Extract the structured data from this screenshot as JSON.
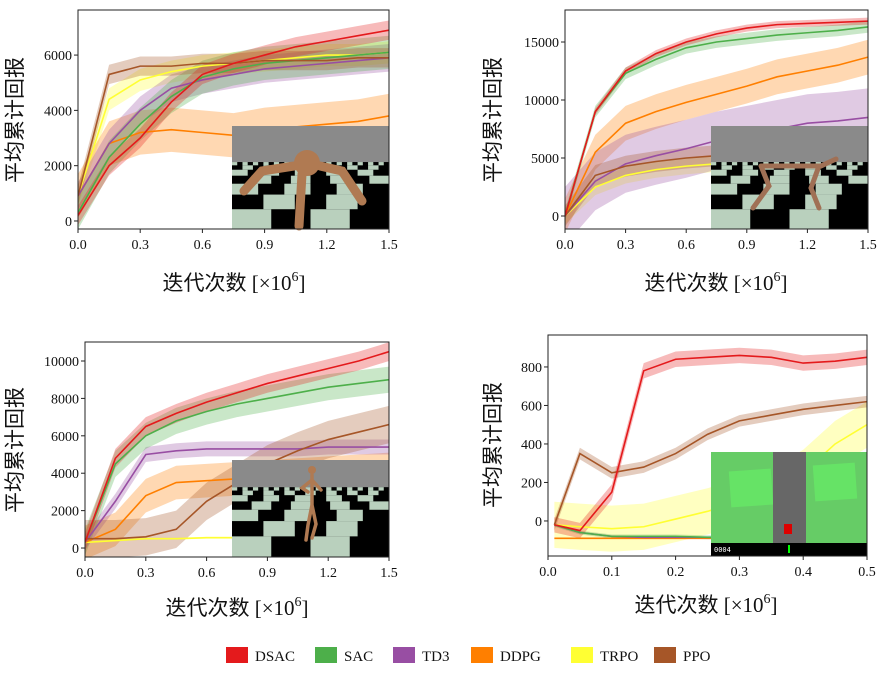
{
  "colors": {
    "DSAC": "#e41a1c",
    "SAC": "#4daf4a",
    "TD3": "#984ea3",
    "DDPG": "#ff7f00",
    "TRPO": "#ffff33",
    "PPO": "#a65628"
  },
  "legend": [
    "DSAC",
    "SAC",
    "TD3",
    "DDPG",
    "TRPO",
    "PPO"
  ],
  "chart_data": [
    {
      "type": "line",
      "xlabel": "迭代次数 [×10",
      "xlabel_sup": "6",
      "xlabel_end": "]",
      "ylabel": "平均累计回报",
      "xlim": [
        0,
        1.5
      ],
      "ylim": [
        -290,
        7630
      ],
      "xticks": [
        "0.0",
        "0.3",
        "0.6",
        "0.9",
        "1.2",
        "1.5"
      ],
      "xtick_values": [
        0,
        0.3,
        0.6,
        0.9,
        1.2,
        1.5
      ],
      "yticks": [
        "0",
        "2000",
        "4000",
        "6000"
      ],
      "ytick_values": [
        0,
        2000,
        4000,
        6000
      ],
      "x": [
        0,
        0.15,
        0.3,
        0.45,
        0.6,
        0.75,
        0.9,
        1.05,
        1.2,
        1.35,
        1.5
      ],
      "series": [
        {
          "name": "DSAC",
          "values": [
            200,
            2000,
            3000,
            4300,
            5300,
            5700,
            6000,
            6300,
            6500,
            6700,
            6900
          ],
          "spread": 350
        },
        {
          "name": "SAC",
          "values": [
            300,
            2300,
            3500,
            4500,
            5200,
            5500,
            5700,
            5800,
            5900,
            6000,
            6100
          ],
          "spread": 600
        },
        {
          "name": "TD3",
          "values": [
            900,
            2800,
            4000,
            4800,
            5100,
            5300,
            5500,
            5600,
            5700,
            5800,
            5900
          ],
          "spread": 500
        },
        {
          "name": "DDPG",
          "values": [
            900,
            2800,
            3200,
            3300,
            3200,
            3100,
            3300,
            3400,
            3500,
            3600,
            3800
          ],
          "spread": 800
        },
        {
          "name": "TRPO",
          "values": [
            900,
            4400,
            5100,
            5400,
            5600,
            5700,
            5800,
            5900,
            6000,
            6000,
            6100
          ],
          "spread": 400
        },
        {
          "name": "PPO",
          "values": [
            900,
            5300,
            5600,
            5600,
            5700,
            5700,
            5800,
            5800,
            5800,
            5900,
            5900
          ],
          "spread": 350
        }
      ]
    },
    {
      "type": "line",
      "xlabel": "迭代次数 [×10",
      "xlabel_sup": "6",
      "xlabel_end": "]",
      "ylabel": "平均累计回报",
      "xlim": [
        0,
        1.5
      ],
      "ylim": [
        -1120,
        17760
      ],
      "xticks": [
        "0.0",
        "0.3",
        "0.6",
        "0.9",
        "1.2",
        "1.5"
      ],
      "xtick_values": [
        0,
        0.3,
        0.6,
        0.9,
        1.2,
        1.5
      ],
      "yticks": [
        "0",
        "5000",
        "10000",
        "15000"
      ],
      "ytick_values": [
        0,
        5000,
        10000,
        15000
      ],
      "x": [
        0,
        0.15,
        0.3,
        0.45,
        0.6,
        0.75,
        0.9,
        1.05,
        1.2,
        1.35,
        1.5
      ],
      "series": [
        {
          "name": "DSAC",
          "values": [
            0,
            9000,
            12500,
            14000,
            15000,
            15700,
            16200,
            16500,
            16600,
            16700,
            16800
          ],
          "spread": 300
        },
        {
          "name": "SAC",
          "values": [
            0,
            9000,
            12300,
            13500,
            14500,
            15000,
            15300,
            15600,
            15800,
            16000,
            16300
          ],
          "spread": 500
        },
        {
          "name": "TD3",
          "values": [
            0,
            3000,
            4500,
            5200,
            5800,
            6500,
            7000,
            7500,
            8000,
            8200,
            8500
          ],
          "spread": 2500
        },
        {
          "name": "DDPG",
          "values": [
            0,
            5500,
            8000,
            9000,
            9800,
            10500,
            11200,
            12000,
            12500,
            13000,
            13700
          ],
          "spread": 1500
        },
        {
          "name": "TRPO",
          "values": [
            0,
            2500,
            3500,
            4000,
            4300,
            4500,
            4800,
            5000,
            5200,
            5300,
            5400
          ],
          "spread": 700
        },
        {
          "name": "PPO",
          "values": [
            0,
            3500,
            4300,
            4700,
            5000,
            5200,
            5300,
            5400,
            5500,
            5500,
            5600
          ],
          "spread": 900
        }
      ]
    },
    {
      "type": "line",
      "xlabel": "迭代次数 [×10",
      "xlabel_sup": "6",
      "xlabel_end": "]",
      "ylabel": "平均累计回报",
      "xlim": [
        0,
        1.5
      ],
      "ylim": [
        -480,
        11016
      ],
      "xticks": [
        "0.0",
        "0.3",
        "0.6",
        "0.9",
        "1.2",
        "1.5"
      ],
      "xtick_values": [
        0,
        0.3,
        0.6,
        0.9,
        1.2,
        1.5
      ],
      "yticks": [
        "0",
        "2000",
        "4000",
        "6000",
        "8000",
        "10000"
      ],
      "ytick_values": [
        0,
        2000,
        4000,
        6000,
        8000,
        10000
      ],
      "x": [
        0,
        0.15,
        0.3,
        0.45,
        0.6,
        0.75,
        0.9,
        1.05,
        1.2,
        1.35,
        1.5
      ],
      "series": [
        {
          "name": "DSAC",
          "values": [
            300,
            4800,
            6500,
            7200,
            7800,
            8300,
            8800,
            9200,
            9600,
            10000,
            10500
          ],
          "spread": 500
        },
        {
          "name": "SAC",
          "values": [
            300,
            4500,
            6000,
            6800,
            7300,
            7700,
            8000,
            8300,
            8600,
            8800,
            9000
          ],
          "spread": 700
        },
        {
          "name": "TD3",
          "values": [
            300,
            2500,
            5000,
            5200,
            5300,
            5300,
            5300,
            5300,
            5400,
            5400,
            5400
          ],
          "spread": 400
        },
        {
          "name": "DDPG",
          "values": [
            300,
            1000,
            2800,
            3500,
            3600,
            3700,
            3800,
            3900,
            4000,
            4100,
            4200
          ],
          "spread": 900
        },
        {
          "name": "TRPO",
          "values": [
            300,
            400,
            500,
            500,
            550,
            550,
            600,
            600,
            600,
            600,
            600
          ],
          "spread": 50
        },
        {
          "name": "PPO",
          "values": [
            500,
            500,
            600,
            1000,
            2500,
            3500,
            4500,
            5200,
            5800,
            6200,
            6600
          ],
          "spread": 1000
        }
      ]
    },
    {
      "type": "line",
      "xlabel": "迭代次数 [×10",
      "xlabel_sup": "6",
      "xlabel_end": "]",
      "ylabel": "平均累计回报",
      "xlim": [
        0,
        0.5
      ],
      "ylim": [
        -182,
        966
      ],
      "xticks": [
        "0.0",
        "0.1",
        "0.2",
        "0.3",
        "0.4",
        "0.5"
      ],
      "xtick_values": [
        0,
        0.1,
        0.2,
        0.3,
        0.4,
        0.5
      ],
      "yticks": [
        "0",
        "200",
        "400",
        "600",
        "800"
      ],
      "ytick_values": [
        0,
        200,
        400,
        600,
        800
      ],
      "x": [
        0.01,
        0.05,
        0.1,
        0.15,
        0.2,
        0.25,
        0.3,
        0.35,
        0.4,
        0.45,
        0.5
      ],
      "series": [
        {
          "name": "DSAC",
          "values": [
            -20,
            -50,
            150,
            780,
            840,
            850,
            860,
            850,
            820,
            830,
            850
          ],
          "spread": 40
        },
        {
          "name": "SAC",
          "values": [
            -20,
            -60,
            -80,
            -80,
            -80,
            -85,
            -85,
            -85,
            -85,
            -85,
            -85
          ],
          "spread": 10
        },
        {
          "name": "TD3",
          "values": [
            -20,
            -60,
            -80,
            -85,
            -85,
            -85,
            -85,
            -85,
            -85,
            -85,
            -85
          ],
          "spread": 5
        },
        {
          "name": "DDPG",
          "values": [
            -90,
            -90,
            -90,
            -90,
            -90,
            -90,
            -90,
            -90,
            -90,
            -90,
            -90
          ],
          "spread": 3
        },
        {
          "name": "TRPO",
          "values": [
            -20,
            -30,
            -40,
            -30,
            10,
            50,
            100,
            150,
            250,
            400,
            500
          ],
          "spread": 120
        },
        {
          "name": "PPO",
          "values": [
            -20,
            350,
            250,
            280,
            350,
            450,
            520,
            550,
            580,
            600,
            620
          ],
          "spread": 30
        }
      ],
      "inset_score": "0004"
    }
  ]
}
